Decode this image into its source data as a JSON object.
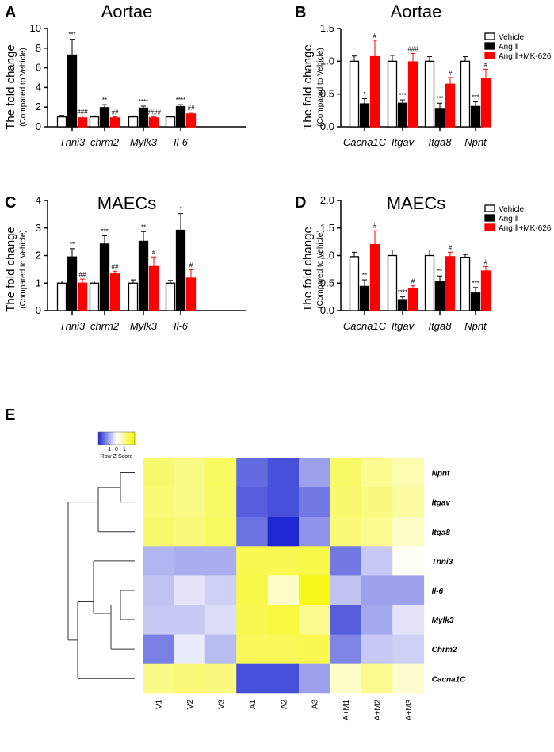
{
  "colors": {
    "vehicle": "#ffffff",
    "angii": "#000000",
    "mk626": "#ff0000",
    "low": "#1e28d2",
    "mid": "#ffffff",
    "high": "#f5f500"
  },
  "chart_data": [
    {
      "panel": "A",
      "type": "bar",
      "title": "Aortae",
      "ylabel": "The fold change",
      "ylabel2": "(Compared to Vehicle)",
      "ylim": [
        0,
        10
      ],
      "yticks": [
        0,
        2,
        4,
        6,
        8,
        10
      ],
      "ytick_labels": [
        "0",
        "2",
        "4",
        "6",
        "8",
        "10"
      ],
      "categories": [
        "Tnni3",
        "chrm2",
        "Mylk3",
        "Il-6"
      ],
      "series": [
        {
          "name": "Vehicle",
          "values": [
            1.0,
            1.0,
            1.0,
            1.0
          ],
          "errors": [
            0.15,
            0.1,
            0.1,
            0.08
          ]
        },
        {
          "name": "Ang II",
          "values": [
            7.3,
            1.95,
            1.9,
            2.05
          ],
          "errors": [
            1.6,
            0.3,
            0.2,
            0.2
          ]
        },
        {
          "name": "Ang II+MK-626",
          "values": [
            0.9,
            0.9,
            0.9,
            1.3
          ],
          "errors": [
            0.2,
            0.12,
            0.1,
            0.15
          ]
        }
      ],
      "annotations": [
        [
          "",
          "***",
          "###"
        ],
        [
          "",
          "**",
          "##"
        ],
        [
          "",
          "****",
          "####"
        ],
        [
          "",
          "****",
          "##"
        ]
      ]
    },
    {
      "panel": "B",
      "type": "bar",
      "title": "Aortae",
      "ylabel": "The fold change",
      "ylabel2": "(Compared to Vehicle)",
      "ylim": [
        0,
        1.5
      ],
      "yticks": [
        0,
        0.5,
        1.0,
        1.5
      ],
      "ytick_labels": [
        "0.0",
        "0.5",
        "1.0",
        "1.5"
      ],
      "categories": [
        "Cacna1C",
        "Itgav",
        "Itga8",
        "Npnt"
      ],
      "series": [
        {
          "name": "Vehicle",
          "values": [
            1.0,
            1.0,
            1.0,
            1.0
          ],
          "errors": [
            0.08,
            0.09,
            0.07,
            0.07
          ]
        },
        {
          "name": "Ang II",
          "values": [
            0.35,
            0.36,
            0.28,
            0.31
          ],
          "errors": [
            0.08,
            0.05,
            0.08,
            0.07
          ]
        },
        {
          "name": "Ang II+MK-626",
          "values": [
            1.07,
            0.99,
            0.65,
            0.73
          ],
          "errors": [
            0.25,
            0.13,
            0.1,
            0.15
          ]
        }
      ],
      "annotations": [
        [
          "",
          "*",
          "#"
        ],
        [
          "",
          "***",
          "###"
        ],
        [
          "",
          "***",
          "#"
        ],
        [
          "",
          "***",
          "#"
        ]
      ],
      "legend": [
        "Vehicle",
        "Ang Ⅱ",
        "Ang Ⅱ+MK-626"
      ]
    },
    {
      "panel": "C",
      "type": "bar",
      "title": "MAECs",
      "ylabel": "The fold change",
      "ylabel2": "(Compared to Vehicle)",
      "ylim": [
        0,
        4
      ],
      "yticks": [
        0,
        1,
        2,
        3,
        4
      ],
      "ytick_labels": [
        "0",
        "1",
        "2",
        "3",
        "4"
      ],
      "categories": [
        "Tnni3",
        "chrm2",
        "Mylk3",
        "Il-6"
      ],
      "series": [
        {
          "name": "Vehicle",
          "values": [
            1.0,
            1.0,
            1.0,
            1.0
          ],
          "errors": [
            0.08,
            0.08,
            0.12,
            0.1
          ]
        },
        {
          "name": "Ang II",
          "values": [
            1.95,
            2.42,
            2.52,
            2.92
          ],
          "errors": [
            0.3,
            0.3,
            0.35,
            0.6
          ]
        },
        {
          "name": "Ang II+MK-626",
          "values": [
            1.0,
            1.33,
            1.6,
            1.18
          ],
          "errors": [
            0.15,
            0.1,
            0.35,
            0.3
          ]
        }
      ],
      "annotations": [
        [
          "",
          "**",
          "##"
        ],
        [
          "",
          "***",
          "##"
        ],
        [
          "",
          "**",
          "#"
        ],
        [
          "",
          "*",
          "#"
        ]
      ]
    },
    {
      "panel": "D",
      "type": "bar",
      "title": "MAECs",
      "ylabel": "The fold change",
      "ylabel2": "(Compared to Vehicle)",
      "ylim": [
        0,
        2.0
      ],
      "yticks": [
        0,
        0.5,
        1.0,
        1.5,
        2.0
      ],
      "ytick_labels": [
        "0.0",
        "0.5",
        "1.0",
        "1.5",
        "2.0"
      ],
      "categories": [
        "Cacna1C",
        "Itgav",
        "Itga8",
        "Npnt"
      ],
      "series": [
        {
          "name": "Vehicle",
          "values": [
            0.98,
            1.0,
            1.0,
            0.97
          ],
          "errors": [
            0.08,
            0.1,
            0.1,
            0.05
          ]
        },
        {
          "name": "Ang II",
          "values": [
            0.44,
            0.2,
            0.53,
            0.32
          ],
          "errors": [
            0.12,
            0.05,
            0.1,
            0.1
          ]
        },
        {
          "name": "Ang II+MK-626",
          "values": [
            1.2,
            0.4,
            0.98,
            0.72
          ],
          "errors": [
            0.25,
            0.05,
            0.08,
            0.08
          ]
        }
      ],
      "annotations": [
        [
          "",
          "**",
          "#"
        ],
        [
          "",
          "****",
          "#"
        ],
        [
          "",
          "**",
          "#"
        ],
        [
          "",
          "***",
          "#"
        ]
      ],
      "legend": [
        "Vehicle",
        "Ang Ⅱ",
        "Ang Ⅱ+MK-626"
      ]
    },
    {
      "panel": "E",
      "type": "heatmap",
      "key_title": "Row Z-Score",
      "key_ticks": [
        "-1",
        "0",
        "1"
      ],
      "columns": [
        "V1",
        "V2",
        "V3",
        "A1",
        "A2",
        "A3",
        "A+M1",
        "A+M2",
        "A+M3"
      ],
      "rows": [
        "Npnt",
        "Itgav",
        "Itga8",
        "Tnni3",
        "Il-6",
        "Mylk3",
        "Chrm2",
        "Cacna1C"
      ],
      "values": [
        [
          0.9,
          0.75,
          1.0,
          -1.1,
          -1.3,
          -0.7,
          0.95,
          0.7,
          0.5
        ],
        [
          0.85,
          0.75,
          0.95,
          -1.2,
          -1.3,
          -1.0,
          0.9,
          0.8,
          0.6
        ],
        [
          0.9,
          0.85,
          1.0,
          -1.05,
          -1.6,
          -0.8,
          0.85,
          0.7,
          0.35
        ],
        [
          -0.55,
          -0.6,
          -0.6,
          1.1,
          1.1,
          1.15,
          -1.0,
          -0.4,
          0.05
        ],
        [
          -0.45,
          -0.2,
          -0.35,
          1.15,
          0.35,
          1.45,
          -0.45,
          -0.7,
          -0.7
        ],
        [
          -0.4,
          -0.4,
          -0.25,
          1.1,
          1.2,
          0.7,
          -1.2,
          -0.65,
          -0.2
        ],
        [
          -0.95,
          -0.15,
          -0.5,
          1.05,
          1.05,
          1.1,
          -0.9,
          -0.4,
          -0.35
        ],
        [
          0.75,
          0.85,
          0.8,
          -1.3,
          -1.3,
          -0.7,
          0.35,
          0.7,
          0.3
        ]
      ]
    }
  ]
}
